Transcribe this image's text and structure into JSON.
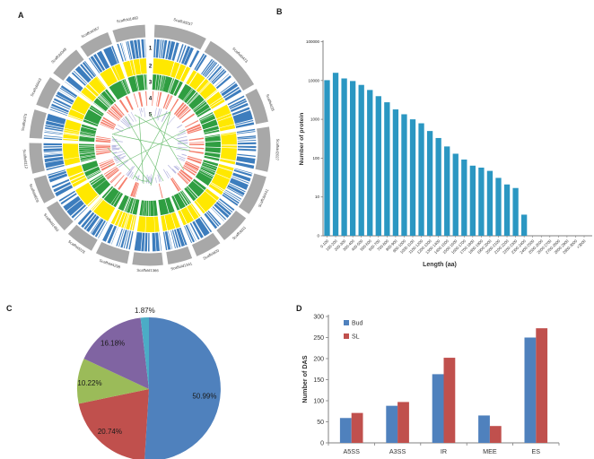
{
  "panels": {
    "a": "A",
    "b": "B",
    "c": "C",
    "d": "D"
  },
  "circos": {
    "ring_numbers": [
      "1",
      "2",
      "3",
      "4",
      "5"
    ],
    "segments": [
      {
        "label": "Scaffold257",
        "span": 26
      },
      {
        "label": "Scaffold423",
        "span": 30
      },
      {
        "label": "Scaffold28",
        "span": 17
      },
      {
        "label": "Scaffold2027",
        "span": 22
      },
      {
        "label": "Scaffold441",
        "span": 20
      },
      {
        "label": "Scaffold11",
        "span": 15
      },
      {
        "label": "Scaffold20",
        "span": 13
      },
      {
        "label": "Scaffold1341",
        "span": 12
      },
      {
        "label": "Scaffold1366",
        "span": 15
      },
      {
        "label": "Scaffold4298",
        "span": 16
      },
      {
        "label": "Scaffold228",
        "span": 14
      },
      {
        "label": "Scaffold1456",
        "span": 14
      },
      {
        "label": "Scaffold659",
        "span": 13
      },
      {
        "label": "Scaffold112",
        "span": 15
      },
      {
        "label": "Scaffold75",
        "span": 14
      },
      {
        "label": "Scaffold443",
        "span": 15
      },
      {
        "label": "Scaffold348",
        "span": 16
      },
      {
        "label": "Scaffold357",
        "span": 15
      },
      {
        "label": "Scaffold1460",
        "span": 16
      }
    ],
    "colors": {
      "arc": "#a8a8a8",
      "ring1": "#3d7dbd",
      "ring2": "#ffe800",
      "ring3": "#2f9e41",
      "ring4": "#f57f6d",
      "ring5": "#b0b0dd",
      "links": "#6fbf73"
    }
  },
  "chart_data": [
    {
      "type": "bar",
      "panel": "B",
      "ylabel": "Number of  protein",
      "xlabel": "Length (aa)",
      "log": true,
      "yticks": [
        "0",
        "10",
        "100",
        "1000",
        "10000",
        "100000"
      ],
      "bar_color": "#2b97c2",
      "categories": [
        "0-100",
        "100-200",
        "200-300",
        "300-400",
        "400-500",
        "500-600",
        "600-700",
        "700-800",
        "800-900",
        "900-1000",
        "1000-1100",
        "1100-1200",
        "1200-1300",
        "1300-1400",
        "1400-1500",
        "1500-1600",
        "1600-1700",
        "1700-1800",
        "1800-1900",
        "1900-2000",
        "2000-2100",
        "2100-2200",
        "2200-2300",
        "2300-2400",
        "2400-2500",
        "2500-2600",
        "2600-2700",
        "2700-2800",
        "2800-2900",
        "2900-3000",
        ">3000"
      ],
      "values": [
        10200,
        15800,
        11300,
        9700,
        7700,
        5700,
        3950,
        2750,
        1800,
        1350,
        1000,
        790,
        500,
        330,
        200,
        130,
        92,
        64,
        57,
        47,
        31,
        21,
        17,
        3.5,
        0,
        0,
        0,
        0,
        0,
        0,
        0
      ]
    },
    {
      "type": "pie",
      "panel": "C",
      "slices": [
        {
          "label": "50.99%",
          "value": 50.99,
          "color": "#4f81bd"
        },
        {
          "label": "20.74%",
          "value": 20.74,
          "color": "#c0504d"
        },
        {
          "label": "10.22%",
          "value": 10.22,
          "color": "#9bbb59"
        },
        {
          "label": "16.18%",
          "value": 16.18,
          "color": "#8064a2"
        },
        {
          "label": "1.87%",
          "value": 1.87,
          "color": "#4bacc6"
        }
      ]
    },
    {
      "type": "bar",
      "panel": "D",
      "ylabel": "Number of DAS",
      "ylim": [
        0,
        300
      ],
      "ytick_step": 50,
      "categories": [
        "A5SS",
        "A3SS",
        "IR",
        "MEE",
        "ES"
      ],
      "series": [
        {
          "name": "Bud",
          "color": "#4f81bd",
          "values": [
            59,
            88,
            163,
            65,
            250
          ]
        },
        {
          "name": "SL",
          "color": "#c0504d",
          "values": [
            71,
            97,
            202,
            40,
            272
          ]
        }
      ]
    }
  ]
}
